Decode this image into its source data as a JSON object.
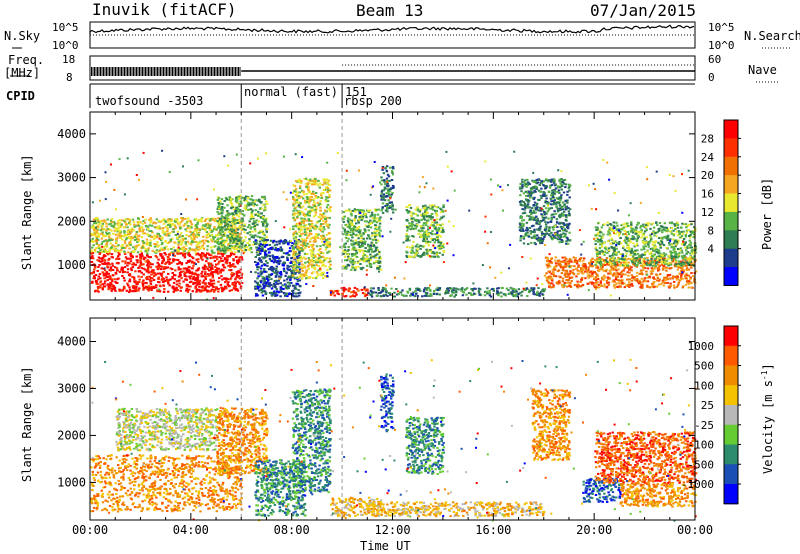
{
  "header": {
    "station": "Inuvik (fitACF)",
    "beam": "Beam 13",
    "date": "07/Jan/2015"
  },
  "top_panel": {
    "nsky_label": "N.Sky",
    "nsearch_label": "N.Search",
    "ticks_left": [
      "10^5",
      "10^0"
    ],
    "ticks_right": [
      "10^5",
      "10^0"
    ]
  },
  "freq_panel": {
    "label_line1": "Freq.",
    "label_line2": "[MHz]",
    "ticks_left": [
      "18",
      "8"
    ],
    "ticks_right": [
      "60",
      "0"
    ],
    "nave_label": "Nave"
  },
  "cpid": {
    "label": "CPID",
    "segments": [
      {
        "text": "twofsound -3503",
        "start_hour": 0,
        "end_hour": 6
      },
      {
        "text": "normal (fast) 151",
        "start_hour": 6,
        "end_hour": 10
      },
      {
        "text": "rbsp 200",
        "start_hour": 10,
        "end_hour": 24
      }
    ]
  },
  "colors": {
    "power": [
      "#0000ff",
      "#1e3c8c",
      "#2e7d52",
      "#58b347",
      "#e8e830",
      "#f5a623",
      "#f07000",
      "#ff3000",
      "#ff0000"
    ],
    "velocity": [
      "#0000ff",
      "#1a4fb5",
      "#2e8c6e",
      "#66cc33",
      "#b8b8b8",
      "#f5c200",
      "#f08c00",
      "#ff5a00",
      "#ff0000"
    ]
  },
  "chart_data": [
    {
      "type": "heatmap",
      "name": "power",
      "ylabel": "Slant Range [km]",
      "ylim": [
        200,
        4500
      ],
      "yticks": [
        1000,
        2000,
        3000,
        4000
      ],
      "xlim": [
        0,
        24
      ],
      "colorbar_label": "Power [dB]",
      "colorbar_ticks": [
        "28",
        "24",
        "20",
        "16",
        "12",
        "8",
        "4"
      ],
      "regions": [
        {
          "x0": 0.0,
          "x1": 6.0,
          "y0": 400,
          "y1": 1300,
          "level": 8
        },
        {
          "x0": 0.0,
          "x1": 6.0,
          "y0": 1300,
          "y1": 2100,
          "level": 4
        },
        {
          "x0": 5.0,
          "x1": 7.0,
          "y0": 1300,
          "y1": 2600,
          "level": 3
        },
        {
          "x0": 6.5,
          "x1": 8.3,
          "y0": 300,
          "y1": 1600,
          "level": 1
        },
        {
          "x0": 8.0,
          "x1": 9.5,
          "y0": 700,
          "y1": 3000,
          "level": 4
        },
        {
          "x0": 9.5,
          "x1": 11.0,
          "y0": 300,
          "y1": 500,
          "level": 7
        },
        {
          "x0": 10.0,
          "x1": 11.5,
          "y0": 900,
          "y1": 2300,
          "level": 3
        },
        {
          "x0": 11.5,
          "x1": 12.0,
          "y0": 2200,
          "y1": 3300,
          "level": 2
        },
        {
          "x0": 12.5,
          "x1": 14.0,
          "y0": 1200,
          "y1": 2400,
          "level": 3
        },
        {
          "x0": 11.0,
          "x1": 18.0,
          "y0": 300,
          "y1": 500,
          "level": 2
        },
        {
          "x0": 17.0,
          "x1": 19.0,
          "y0": 1500,
          "y1": 3000,
          "level": 2
        },
        {
          "x0": 18.0,
          "x1": 24.0,
          "y0": 500,
          "y1": 1200,
          "level": 6
        },
        {
          "x0": 20.0,
          "x1": 24.0,
          "y0": 1000,
          "y1": 2000,
          "level": 3
        }
      ]
    },
    {
      "type": "heatmap",
      "name": "velocity",
      "ylabel": "Slant Range [km]",
      "xlabel": "Time UT",
      "ylim": [
        200,
        4500
      ],
      "yticks": [
        1000,
        2000,
        3000,
        4000
      ],
      "xlim": [
        0,
        24
      ],
      "xticks": [
        "00:00",
        "04:00",
        "08:00",
        "12:00",
        "16:00",
        "20:00",
        "00:00"
      ],
      "colorbar_label": "Velocity [m s^-1]",
      "colorbar_ticks": [
        "1000",
        "500",
        "100",
        "25",
        "-25",
        "-100",
        "-500",
        "-1000"
      ],
      "regions": [
        {
          "x0": 0.0,
          "x1": 6.0,
          "y0": 400,
          "y1": 1600,
          "level": 6
        },
        {
          "x0": 1.0,
          "x1": 5.0,
          "y0": 1700,
          "y1": 2600,
          "level": 4
        },
        {
          "x0": 5.0,
          "x1": 7.0,
          "y0": 1200,
          "y1": 2600,
          "level": 6
        },
        {
          "x0": 6.5,
          "x1": 8.5,
          "y0": 300,
          "y1": 1500,
          "level": 2
        },
        {
          "x0": 8.0,
          "x1": 9.5,
          "y0": 800,
          "y1": 3000,
          "level": 2
        },
        {
          "x0": 9.5,
          "x1": 11.5,
          "y0": 300,
          "y1": 700,
          "level": 5
        },
        {
          "x0": 11.5,
          "x1": 12.0,
          "y0": 2100,
          "y1": 3300,
          "level": 1
        },
        {
          "x0": 12.5,
          "x1": 14.0,
          "y0": 1200,
          "y1": 2400,
          "level": 2
        },
        {
          "x0": 11.0,
          "x1": 18.0,
          "y0": 300,
          "y1": 600,
          "level": 5
        },
        {
          "x0": 17.5,
          "x1": 19.0,
          "y0": 1500,
          "y1": 3000,
          "level": 6
        },
        {
          "x0": 19.5,
          "x1": 21.0,
          "y0": 600,
          "y1": 1100,
          "level": 1
        },
        {
          "x0": 20.0,
          "x1": 24.0,
          "y0": 1000,
          "y1": 2100,
          "level": 7
        },
        {
          "x0": 21.0,
          "x1": 24.0,
          "y0": 500,
          "y1": 1000,
          "level": 6
        }
      ]
    }
  ]
}
